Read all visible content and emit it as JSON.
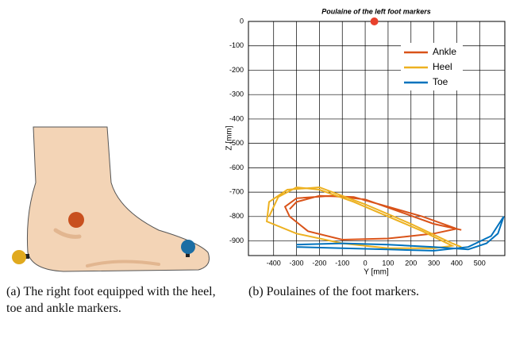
{
  "figure_a": {
    "caption": "(a) The right foot equipped with the heel, toe and ankle markers."
  },
  "figure_b": {
    "caption": "(b) Poulaines of the foot markers."
  },
  "chart_data": {
    "type": "line",
    "title": "Poulaine of the left foot markers",
    "xlabel": "Y [mm]",
    "ylabel": "Z [mm]",
    "xlim": [
      -510,
      610
    ],
    "ylim": [
      -960,
      0
    ],
    "xticks": [
      -400,
      -300,
      -200,
      -100,
      0,
      100,
      200,
      300,
      400,
      500
    ],
    "yticks": [
      0,
      -100,
      -200,
      -300,
      -400,
      -500,
      -600,
      -700,
      -800,
      -900
    ],
    "grid": true,
    "legend": "upper right",
    "series": [
      {
        "name": "Ankle",
        "color": "#d95319",
        "x": [
          -330,
          -300,
          -200,
          -50,
          100,
          250,
          400,
          300,
          100,
          -100,
          -250,
          -330,
          -350,
          -300,
          -150,
          0,
          150,
          300,
          420
        ],
        "y": [
          -770,
          -740,
          -715,
          -720,
          -760,
          -800,
          -850,
          -870,
          -890,
          -895,
          -860,
          -800,
          -760,
          -725,
          -715,
          -730,
          -780,
          -830,
          -855
        ]
      },
      {
        "name": "Heel",
        "color": "#edb120",
        "x": [
          -420,
          -380,
          -300,
          -200,
          -50,
          100,
          250,
          380,
          300,
          100,
          -100,
          -300,
          -430,
          -420,
          -340,
          -200,
          0,
          200,
          380,
          420
        ],
        "y": [
          -800,
          -720,
          -680,
          -690,
          -740,
          -800,
          -860,
          -920,
          -930,
          -930,
          -910,
          -870,
          -820,
          -740,
          -690,
          -680,
          -750,
          -830,
          -910,
          -925
        ]
      },
      {
        "name": "Toe",
        "color": "#0072bd",
        "x": [
          -300,
          -100,
          100,
          300,
          450,
          530,
          580,
          605,
          550,
          450,
          300,
          100,
          -100,
          -300
        ],
        "y": [
          -915,
          -910,
          -915,
          -925,
          -935,
          -910,
          -870,
          -800,
          -880,
          -925,
          -940,
          -935,
          -930,
          -925
        ]
      }
    ],
    "points": [
      {
        "x": 40,
        "y": 0,
        "color": "#e8412c"
      }
    ]
  }
}
